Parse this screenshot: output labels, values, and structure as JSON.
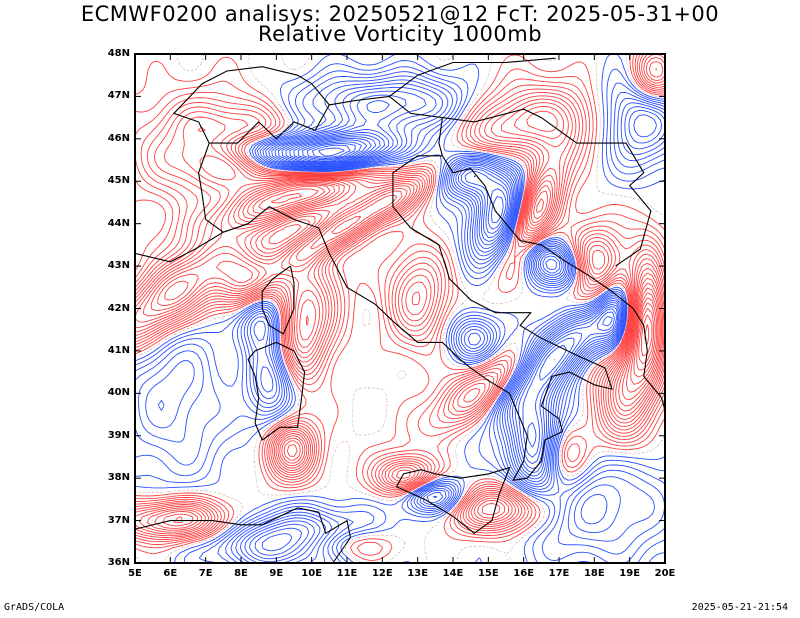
{
  "title_line1": "ECMWF0200 analisys: 20250521@12 FcT: 2025-05-31+00",
  "title_line2": "Relative Vorticity 1000mb",
  "map": {
    "lon_range": [
      5,
      20
    ],
    "lat_range": [
      36,
      48
    ],
    "lat_labels": [
      "48N",
      "47N",
      "46N",
      "45N",
      "44N",
      "43N",
      "42N",
      "41N",
      "40N",
      "39N",
      "38N",
      "37N",
      "36N"
    ],
    "lon_labels": [
      "5E",
      "6E",
      "7E",
      "8E",
      "9E",
      "10E",
      "11E",
      "12E",
      "13E",
      "14E",
      "15E",
      "16E",
      "17E",
      "18E",
      "19E",
      "20E"
    ],
    "colors": {
      "positive": "#ff4040",
      "negative": "#2850ff",
      "borders": "#000000"
    }
  },
  "footer": {
    "left": "GrADS/COLA",
    "right": "2025-05-21-21:54"
  }
}
